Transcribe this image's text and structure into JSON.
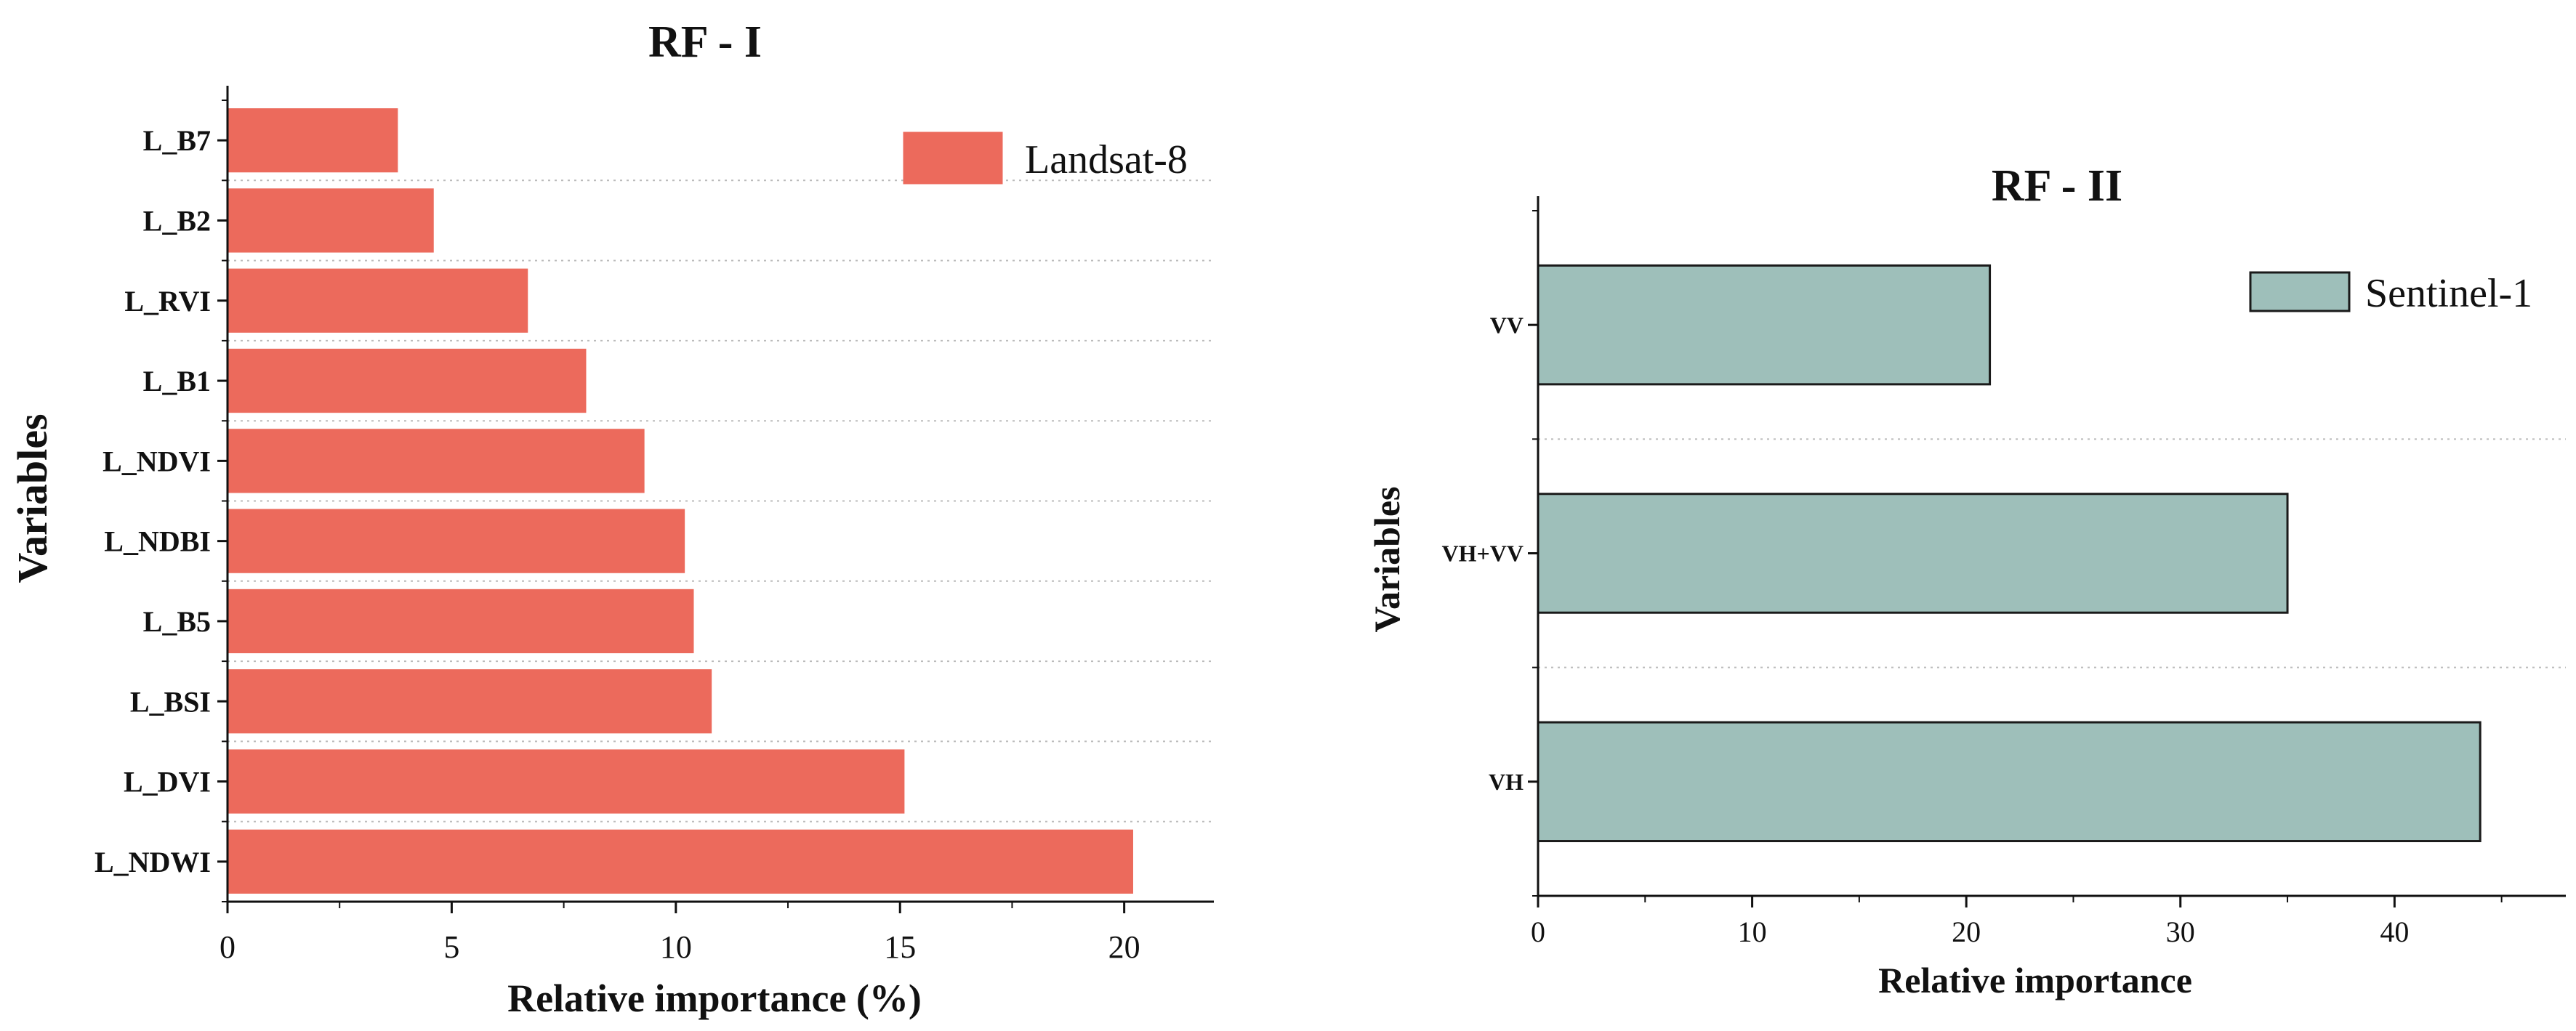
{
  "chart_data": [
    {
      "type": "bar",
      "orientation": "horizontal",
      "title": "RF - I",
      "xlabel": "Relative importance (%)",
      "ylabel": "Variables",
      "categories": [
        "L_NDWI",
        "L_DVI",
        "L_BSI",
        "L_B5",
        "L_NDBI",
        "L_NDVI",
        "L_B1",
        "L_RVI",
        "L_B2",
        "L_B7"
      ],
      "values": [
        20.2,
        15.1,
        10.8,
        10.4,
        10.2,
        9.3,
        8.0,
        6.7,
        4.6,
        3.8
      ],
      "xlim": [
        0,
        22
      ],
      "xticks": [
        0,
        5,
        10,
        15,
        20
      ],
      "legend": {
        "label": "Landsat-8",
        "position": "top-right"
      },
      "bar_color": "#ec6a5c",
      "bar_edge": "#ec6a5c",
      "grid": "horizontal dotted"
    },
    {
      "type": "bar",
      "orientation": "horizontal",
      "title": "RF - II",
      "xlabel": "Relative importance",
      "ylabel": "Variables",
      "categories": [
        "VH",
        "VH+VV",
        "VV"
      ],
      "values": [
        44.0,
        35.0,
        21.1
      ],
      "xlim": [
        0,
        48
      ],
      "xticks": [
        0,
        10,
        20,
        30,
        40
      ],
      "legend": {
        "label": "Sentinel-1",
        "position": "top-right"
      },
      "bar_color": "#9ebfba",
      "bar_edge": "#1a1a1a",
      "grid": "horizontal dotted"
    }
  ]
}
